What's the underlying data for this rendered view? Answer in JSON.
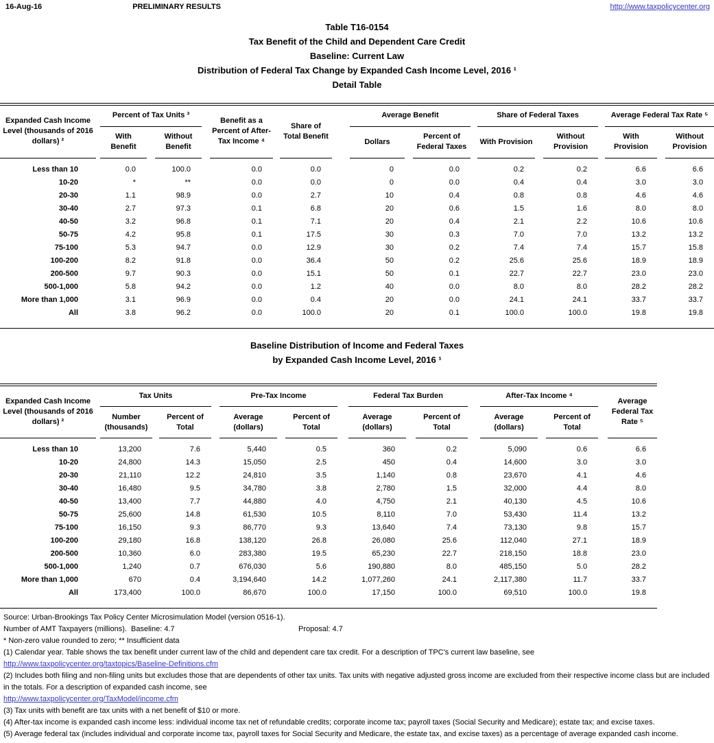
{
  "page": {
    "date": "16-Aug-16",
    "status": "PRELIMINARY RESULTS",
    "site_link": "http://www.taxpolicycenter.org",
    "link_color": "#3333CC",
    "text_color": "#000000"
  },
  "title_block": {
    "table_number": "Table T16-0154",
    "subject": "Tax Benefit of the Child and Dependent Care Credit",
    "baseline": "Baseline: Current Law",
    "distribution": "Distribution of Federal Tax Change by Expanded Cash Income Level, 2016 ¹",
    "detail": "Detail Table"
  },
  "detail_table": {
    "income_col_header": "Expanded Cash Income Level (thousands of 2016 dollars) ²",
    "groups": {
      "percent_of_tax_units": "Percent of Tax Units ³",
      "benefit_as_percent_of_after_tax_income": "Benefit as a Percent of After-Tax Income ⁴",
      "share_of_total_benefit": "Share of Total Benefit",
      "average_benefit": "Average Benefit",
      "share_of_federal_taxes": "Share of Federal Taxes",
      "average_federal_tax_rate": "Average Federal Tax Rate ⁵"
    },
    "subheaders": {
      "with_benefit": "With Benefit",
      "without_benefit": "Without Benefit",
      "dollars": "Dollars",
      "percent_of_federal_taxes": "Percent of Federal Taxes",
      "with_provision": "With Provision",
      "without_provision": "Without Provision"
    },
    "rows": [
      [
        "Less than 10",
        "0.0",
        "100.0",
        "0.0",
        "0.0",
        "0",
        "0.0",
        "0.2",
        "0.2",
        "6.6",
        "6.6"
      ],
      [
        "10-20",
        "*",
        "**",
        "0.0",
        "0.0",
        "0",
        "0.0",
        "0.4",
        "0.4",
        "3.0",
        "3.0"
      ],
      [
        "20-30",
        "1.1",
        "98.9",
        "0.0",
        "2.7",
        "10",
        "0.4",
        "0.8",
        "0.8",
        "4.6",
        "4.6"
      ],
      [
        "30-40",
        "2.7",
        "97.3",
        "0.1",
        "6.8",
        "20",
        "0.6",
        "1.5",
        "1.6",
        "8.0",
        "8.0"
      ],
      [
        "40-50",
        "3.2",
        "96.8",
        "0.1",
        "7.1",
        "20",
        "0.4",
        "2.1",
        "2.2",
        "10.6",
        "10.6"
      ],
      [
        "50-75",
        "4.2",
        "95.8",
        "0.1",
        "17.5",
        "30",
        "0.3",
        "7.0",
        "7.0",
        "13.2",
        "13.2"
      ],
      [
        "75-100",
        "5.3",
        "94.7",
        "0.0",
        "12.9",
        "30",
        "0.2",
        "7.4",
        "7.4",
        "15.7",
        "15.8"
      ],
      [
        "100-200",
        "8.2",
        "91.8",
        "0.0",
        "36.4",
        "50",
        "0.2",
        "25.6",
        "25.6",
        "18.9",
        "18.9"
      ],
      [
        "200-500",
        "9.7",
        "90.3",
        "0.0",
        "15.1",
        "50",
        "0.1",
        "22.7",
        "22.7",
        "23.0",
        "23.0"
      ],
      [
        "500-1,000",
        "5.8",
        "94.2",
        "0.0",
        "1.2",
        "40",
        "0.0",
        "8.0",
        "8.0",
        "28.2",
        "28.2"
      ],
      [
        "More than 1,000",
        "3.1",
        "96.9",
        "0.0",
        "0.4",
        "20",
        "0.0",
        "24.1",
        "24.1",
        "33.7",
        "33.7"
      ],
      [
        "All",
        "3.8",
        "96.2",
        "0.0",
        "100.0",
        "20",
        "0.1",
        "100.0",
        "100.0",
        "19.8",
        "19.8"
      ]
    ]
  },
  "baseline_table": {
    "title_line1": "Baseline Distribution of Income and Federal Taxes",
    "title_line2": "by Expanded Cash Income Level, 2016 ¹",
    "income_col_header": "Expanded Cash Income Level (thousands of 2016 dollars) ²",
    "groups": {
      "tax_units": "Tax Units",
      "pre_tax_income": "Pre-Tax Income",
      "federal_tax_burden": "Federal Tax Burden",
      "after_tax_income": "After-Tax Income ⁴",
      "average_federal_tax_rate": "Average Federal Tax Rate ⁵"
    },
    "subheaders": {
      "number_thousands": "Number (thousands)",
      "percent_of_total": "Percent of Total",
      "average_dollars": "Average (dollars)"
    },
    "rows": [
      [
        "Less than 10",
        "13,200",
        "7.6",
        "5,440",
        "0.5",
        "360",
        "0.2",
        "5,090",
        "0.6",
        "6.6"
      ],
      [
        "10-20",
        "24,800",
        "14.3",
        "15,050",
        "2.5",
        "450",
        "0.4",
        "14,600",
        "3.0",
        "3.0"
      ],
      [
        "20-30",
        "21,110",
        "12.2",
        "24,810",
        "3.5",
        "1,140",
        "0.8",
        "23,670",
        "4.1",
        "4.6"
      ],
      [
        "30-40",
        "16,480",
        "9.5",
        "34,780",
        "3.8",
        "2,780",
        "1.5",
        "32,000",
        "4.4",
        "8.0"
      ],
      [
        "40-50",
        "13,400",
        "7.7",
        "44,880",
        "4.0",
        "4,750",
        "2.1",
        "40,130",
        "4.5",
        "10.6"
      ],
      [
        "50-75",
        "25,600",
        "14.8",
        "61,530",
        "10.5",
        "8,110",
        "7.0",
        "53,430",
        "11.4",
        "13.2"
      ],
      [
        "75-100",
        "16,150",
        "9.3",
        "86,770",
        "9.3",
        "13,640",
        "7.4",
        "73,130",
        "9.8",
        "15.7"
      ],
      [
        "100-200",
        "29,180",
        "16.8",
        "138,120",
        "26.8",
        "26,080",
        "25.6",
        "112,040",
        "27.1",
        "18.9"
      ],
      [
        "200-500",
        "10,360",
        "6.0",
        "283,380",
        "19.5",
        "65,230",
        "22.7",
        "218,150",
        "18.8",
        "23.0"
      ],
      [
        "500-1,000",
        "1,240",
        "0.7",
        "676,030",
        "5.6",
        "190,880",
        "8.0",
        "485,150",
        "5.0",
        "28.2"
      ],
      [
        "More than 1,000",
        "670",
        "0.4",
        "3,194,640",
        "14.2",
        "1,077,260",
        "24.1",
        "2,117,380",
        "11.7",
        "33.7"
      ],
      [
        "All",
        "173,400",
        "100.0",
        "86,670",
        "100.0",
        "17,150",
        "100.0",
        "69,510",
        "100.0",
        "19.8"
      ]
    ]
  },
  "footnotes": {
    "source": "Source: Urban-Brookings Tax Policy Center Microsimulation Model (version 0516-1).",
    "amt_baseline": "Number of AMT Taxpayers (millions).  Baseline: 4.7",
    "amt_proposal": "Proposal: 4.7",
    "asterisks": "* Non-zero value rounded to zero; ** Insufficient data",
    "note1": "(1) Calendar year. Table shows the tax benefit under current law of the child and dependent care tax credit. For a description of TPC's current law baseline, see",
    "link1": "http://www.taxpolicycenter.org/taxtopics/Baseline-Definitions.cfm",
    "note2": "(2) Includes both filing and non-filing units but excludes those that are dependents of other tax units. Tax units with negative adjusted gross income are excluded from their respective income class but are included in the totals. For a description of expanded cash income, see",
    "link2": "http://www.taxpolicycenter.org/TaxModel/income.cfm",
    "note3": "(3) Tax units with benefit are tax units with a net benefit of $10 or more.",
    "note4": "(4) After-tax income is expanded cash income less: individual income tax net of refundable credits; corporate income tax; payroll taxes (Social Security and Medicare); estate tax; and excise taxes.",
    "note5": "(5) Average federal tax (includes individual and corporate income tax, payroll taxes for Social Security and Medicare, the estate tax, and excise taxes) as a percentage of average expanded cash income."
  }
}
